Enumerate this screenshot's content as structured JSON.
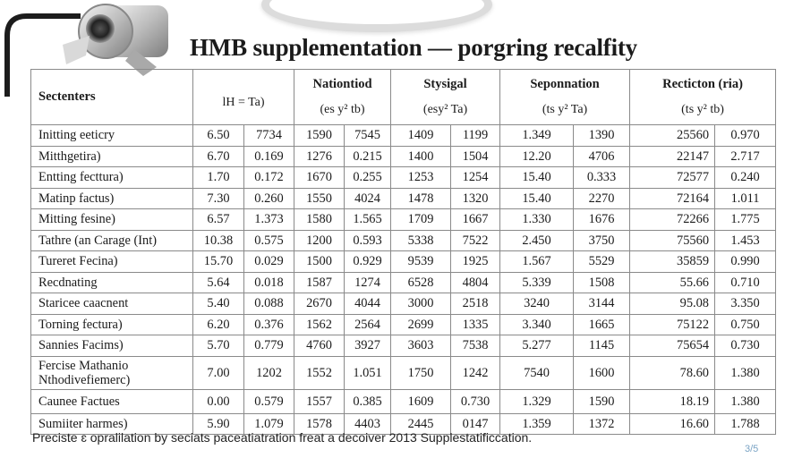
{
  "title": "HMB supplementation — porgring recalfity",
  "header": {
    "corner_label": "Sectenters",
    "groups": [
      {
        "name": "",
        "sub": "lH = Ta)"
      },
      {
        "name": "Nationtiod",
        "sub": "(es y² tb)"
      },
      {
        "name": "Stysigal",
        "sub": "(esy² Ta)"
      },
      {
        "name": "Seponnation",
        "sub": "(ts y² Ta)"
      },
      {
        "name": "Recticton (ria)",
        "sub": "(ts y² tb)"
      }
    ]
  },
  "rows": [
    {
      "label": "Initting eeticry",
      "values": [
        "6.50",
        "7734",
        "1590",
        "7545",
        "1409",
        "1199",
        "1.349",
        "1390",
        "25560",
        "0.970"
      ]
    },
    {
      "label": "Mitthgetira)",
      "values": [
        "6.70",
        "0.169",
        "1276",
        "0.215",
        "1400",
        "1504",
        "12.20",
        "4706",
        "22147",
        "2.717"
      ]
    },
    {
      "label": "Entting fecttura)",
      "values": [
        "1.70",
        "0.172",
        "1670",
        "0.255",
        "1253",
        "1254",
        "15.40",
        "0.333",
        "72577",
        "0.240"
      ]
    },
    {
      "label": "Matinp factus)",
      "values": [
        "7.30",
        "0.260",
        "1550",
        "4024",
        "1478",
        "1320",
        "15.40",
        "2270",
        "72164",
        "1.011"
      ]
    },
    {
      "label": "Mitting fesine)",
      "values": [
        "6.57",
        "1.373",
        "1580",
        "1.565",
        "1709",
        "1667",
        "1.330",
        "1676",
        "72266",
        "1.775"
      ]
    },
    {
      "label": "Tathre (an Carage (Int)",
      "values": [
        "10.38",
        "0.575",
        "1200",
        "0.593",
        "5338",
        "7522",
        "2.450",
        "3750",
        "75560",
        "1.453"
      ]
    },
    {
      "label": "Tureret Fecina)",
      "values": [
        "15.70",
        "0.029",
        "1500",
        "0.929",
        "9539",
        "1925",
        "1.567",
        "5529",
        "35859",
        "0.990"
      ]
    },
    {
      "label": "Recdnating",
      "values": [
        "5.64",
        "0.018",
        "1587",
        "1274",
        "6528",
        "4804",
        "5.339",
        "1508",
        "55.66",
        "0.710"
      ]
    },
    {
      "label": "Staricee caacnent",
      "values": [
        "5.40",
        "0.088",
        "2670",
        "4044",
        "3000",
        "2518",
        "3240",
        "3144",
        "95.08",
        "3.350"
      ]
    },
    {
      "label": "Torning fectura)",
      "values": [
        "6.20",
        "0.376",
        "1562",
        "2564",
        "2699",
        "1335",
        "3.340",
        "1665",
        "75122",
        "0.750"
      ]
    },
    {
      "label": "Sannies Facims)",
      "values": [
        "5.70",
        "0.779",
        "4760",
        "3927",
        "3603",
        "7538",
        "5.277",
        "1145",
        "75654",
        "0.730"
      ]
    },
    {
      "label": "Fercise Mathanio\nNthodivefiemerc)",
      "values": [
        "7.00",
        "1202",
        "1552",
        "1.051",
        "1750",
        "1242",
        "7540",
        "1600",
        "78.60",
        "1.380"
      ]
    },
    {
      "label": "Caunee Factues",
      "values": [
        "0.00",
        "0.579",
        "1557",
        "0.385",
        "1609",
        "0.730",
        "1.329",
        "1590",
        "18.19",
        "1.380"
      ]
    },
    {
      "label": "Sumiiter harmes)",
      "values": [
        "5.90",
        "1.079",
        "1578",
        "4403",
        "2445",
        "0147",
        "1.359",
        "1372",
        "16.60",
        "1.788"
      ]
    }
  ],
  "footnote": "Preciste ɛ opralilation by seciats paceatiatration freat a decoiver 2013 Supplestatificcation.",
  "page_number": "3/5",
  "colors": {
    "text": "#1b1b1b",
    "grid": "#8a8a8a",
    "background": "#ffffff"
  }
}
